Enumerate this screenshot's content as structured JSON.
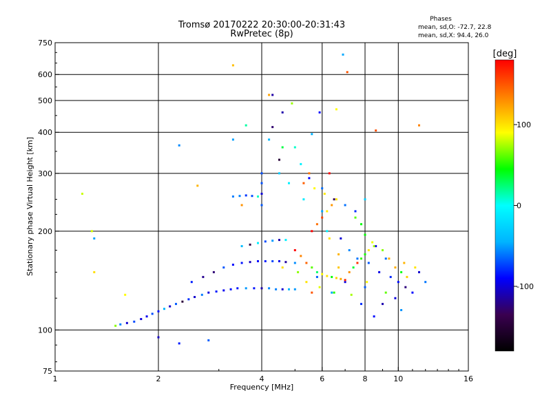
{
  "header": {
    "title_line1": "Tromsø 20170222 20:30:00-20:31:43",
    "title_line2": "RwPretec (8p)"
  },
  "phases_box": {
    "heading": "Phases",
    "line_o": "mean, sd,O: -72.7, 22.8",
    "line_x": "mean, sd,X:  94.4, 26.0"
  },
  "chart_data": {
    "type": "scatter",
    "xlabel": "Frequency [MHz]",
    "ylabel": "Stationary phase Virtual Height [km]",
    "x_scale": "log",
    "y_scale": "log",
    "xlim": [
      1,
      16
    ],
    "ylim": [
      75,
      750
    ],
    "x_ticks": [
      1,
      2,
      4,
      6,
      8,
      10,
      16
    ],
    "x_tick_labels": [
      "1",
      "2",
      "4",
      "6",
      "8",
      "10",
      "16"
    ],
    "y_ticks": [
      75,
      100,
      200,
      300,
      400,
      500,
      600,
      750
    ],
    "y_tick_labels": [
      "75",
      "100",
      "200",
      "300",
      "400",
      "500",
      "600",
      "750"
    ],
    "grid": true,
    "colorbar": {
      "label": "[deg]",
      "range": [
        -180,
        180
      ],
      "ticks": [
        100,
        0,
        -100
      ],
      "tick_labels": [
        "100",
        "0",
        "-100"
      ],
      "colors": [
        "#000000",
        "#3a0050",
        "#0000ff",
        "#00b4ff",
        "#00ffff",
        "#00ff00",
        "#ffff00",
        "#ff8000",
        "#ff0000"
      ]
    },
    "series": [
      {
        "name": "O",
        "phase_mean": -72.7,
        "phase_sd": 22.8,
        "points": [
          [
            1.5,
            103
          ],
          [
            1.55,
            104
          ],
          [
            1.62,
            105
          ],
          [
            1.7,
            106
          ],
          [
            1.78,
            108
          ],
          [
            1.85,
            110
          ],
          [
            1.92,
            112
          ],
          [
            2.0,
            114
          ],
          [
            2.08,
            116
          ],
          [
            2.16,
            118
          ],
          [
            2.25,
            120
          ],
          [
            2.35,
            122
          ],
          [
            2.45,
            124
          ],
          [
            2.55,
            126
          ],
          [
            2.68,
            128
          ],
          [
            2.8,
            130
          ],
          [
            2.95,
            131
          ],
          [
            3.1,
            132
          ],
          [
            3.25,
            133
          ],
          [
            3.4,
            134
          ],
          [
            3.6,
            134
          ],
          [
            3.8,
            134
          ],
          [
            4.0,
            134
          ],
          [
            4.2,
            134
          ],
          [
            4.4,
            133
          ],
          [
            4.6,
            133
          ],
          [
            4.8,
            133
          ],
          [
            5.0,
            133
          ],
          [
            2.5,
            140
          ],
          [
            2.7,
            145
          ],
          [
            2.9,
            150
          ],
          [
            3.1,
            155
          ],
          [
            3.3,
            158
          ],
          [
            3.5,
            160
          ],
          [
            3.7,
            161
          ],
          [
            3.9,
            162
          ],
          [
            4.1,
            162
          ],
          [
            4.3,
            162
          ],
          [
            4.5,
            162
          ],
          [
            4.7,
            161
          ],
          [
            5.0,
            160
          ],
          [
            3.5,
            180
          ],
          [
            3.7,
            182
          ],
          [
            3.9,
            184
          ],
          [
            4.1,
            186
          ],
          [
            4.3,
            187
          ],
          [
            4.5,
            188
          ],
          [
            4.7,
            188
          ],
          [
            3.3,
            255
          ],
          [
            3.45,
            256
          ],
          [
            3.6,
            257
          ],
          [
            3.75,
            256
          ],
          [
            3.9,
            255
          ],
          [
            4.0,
            240
          ],
          [
            4.0,
            260
          ],
          [
            4.0,
            280
          ],
          [
            4.0,
            300
          ],
          [
            4.5,
            300
          ],
          [
            4.5,
            330
          ],
          [
            4.6,
            360
          ],
          [
            4.2,
            380
          ],
          [
            5.0,
            360
          ],
          [
            5.2,
            320
          ],
          [
            5.5,
            290
          ],
          [
            6.0,
            270
          ],
          [
            6.5,
            250
          ],
          [
            7.0,
            240
          ],
          [
            7.5,
            230
          ],
          [
            8.0,
            250
          ],
          [
            6.2,
            200
          ],
          [
            6.8,
            190
          ],
          [
            7.2,
            175
          ],
          [
            7.6,
            165
          ],
          [
            8.2,
            160
          ],
          [
            8.8,
            150
          ],
          [
            9.5,
            145
          ],
          [
            10.0,
            140
          ],
          [
            10.5,
            135
          ],
          [
            11.0,
            130
          ],
          [
            9.0,
            120
          ],
          [
            8.5,
            110
          ],
          [
            9.8,
            125
          ],
          [
            7.0,
            140
          ],
          [
            5.8,
            145
          ],
          [
            6.4,
            130
          ],
          [
            8.0,
            135
          ],
          [
            3.3,
            380
          ],
          [
            4.3,
            520
          ],
          [
            6.9,
            690
          ],
          [
            2.3,
            365
          ],
          [
            1.3,
            190
          ],
          [
            2.0,
            95
          ],
          [
            4.6,
            460
          ],
          [
            5.9,
            460
          ],
          [
            5.6,
            395
          ],
          [
            4.3,
            415
          ],
          [
            2.3,
            91
          ],
          [
            2.8,
            93
          ],
          [
            11.5,
            150
          ],
          [
            12.0,
            140
          ],
          [
            10.2,
            115
          ],
          [
            7.8,
            120
          ],
          [
            9.2,
            165
          ],
          [
            8.6,
            180
          ],
          [
            6.0,
            230
          ],
          [
            5.3,
            250
          ],
          [
            4.8,
            280
          ]
        ]
      },
      {
        "name": "X",
        "phase_mean": 94.4,
        "phase_sd": 26.0,
        "points": [
          [
            5.0,
            175
          ],
          [
            5.2,
            168
          ],
          [
            5.4,
            160
          ],
          [
            5.6,
            155
          ],
          [
            5.8,
            150
          ],
          [
            6.0,
            148
          ],
          [
            6.2,
            146
          ],
          [
            6.4,
            145
          ],
          [
            6.6,
            144
          ],
          [
            6.8,
            143
          ],
          [
            7.0,
            142
          ],
          [
            7.2,
            150
          ],
          [
            7.4,
            155
          ],
          [
            7.6,
            160
          ],
          [
            7.8,
            165
          ],
          [
            8.0,
            170
          ],
          [
            8.2,
            175
          ],
          [
            8.5,
            180
          ],
          [
            5.6,
            200
          ],
          [
            5.8,
            210
          ],
          [
            6.0,
            220
          ],
          [
            6.2,
            230
          ],
          [
            6.4,
            240
          ],
          [
            6.6,
            250
          ],
          [
            7.5,
            220
          ],
          [
            7.8,
            210
          ],
          [
            8.0,
            195
          ],
          [
            8.4,
            185
          ],
          [
            9.0,
            175
          ],
          [
            9.4,
            165
          ],
          [
            9.8,
            155
          ],
          [
            10.2,
            150
          ],
          [
            10.6,
            145
          ],
          [
            5.3,
            280
          ],
          [
            5.5,
            300
          ],
          [
            5.7,
            270
          ],
          [
            6.1,
            260
          ],
          [
            6.3,
            190
          ],
          [
            6.7,
            170
          ],
          [
            5.4,
            140
          ],
          [
            5.9,
            135
          ],
          [
            6.5,
            130
          ],
          [
            7.3,
            128
          ],
          [
            8.1,
            140
          ],
          [
            9.2,
            130
          ],
          [
            10.4,
            160
          ],
          [
            11.2,
            155
          ],
          [
            4.6,
            155
          ],
          [
            5.1,
            150
          ],
          [
            6.7,
            155
          ],
          [
            5.6,
            130
          ],
          [
            6.3,
            300
          ],
          [
            7.1,
            610
          ],
          [
            4.2,
            520
          ],
          [
            3.3,
            640
          ],
          [
            6.6,
            470
          ],
          [
            8.6,
            405
          ],
          [
            11.5,
            420
          ],
          [
            4.9,
            490
          ],
          [
            2.6,
            275
          ],
          [
            1.2,
            260
          ],
          [
            1.28,
            200
          ],
          [
            1.3,
            150
          ],
          [
            1.6,
            128
          ],
          [
            3.5,
            240
          ],
          [
            3.6,
            420
          ]
        ]
      }
    ]
  }
}
